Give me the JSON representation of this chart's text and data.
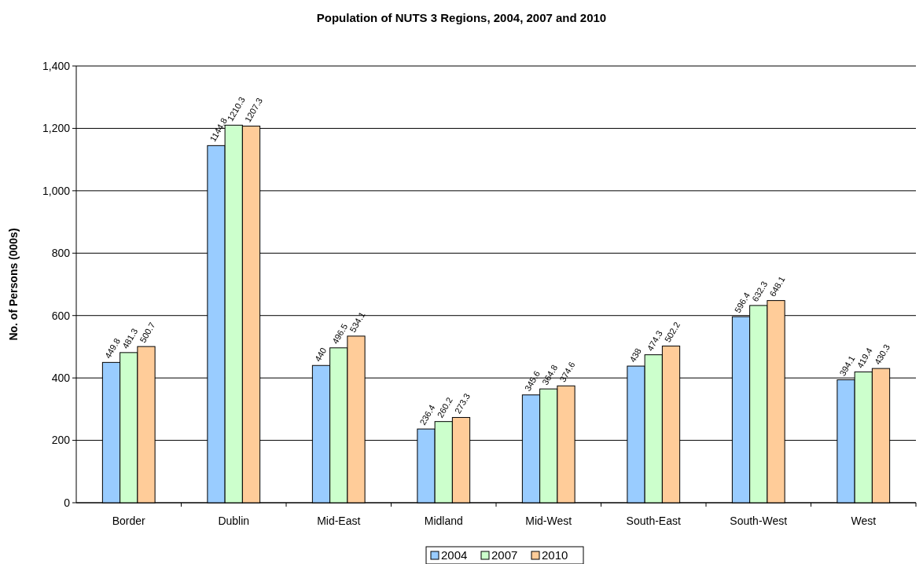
{
  "chart_data": {
    "type": "bar",
    "title": "Population of NUTS 3 Regions, 2004, 2007 and 2010",
    "ylabel": "No. of Persons (000s)",
    "categories": [
      "Border",
      "Dublin",
      "Mid-East",
      "Midland",
      "Mid-West",
      "South-East",
      "South-West",
      "West"
    ],
    "series": [
      {
        "name": "2004",
        "color": "#99ccff",
        "values": [
          449.8,
          1144.8,
          440,
          236.4,
          345.6,
          438,
          596.4,
          394.1
        ]
      },
      {
        "name": "2007",
        "color": "#ccffcc",
        "values": [
          481.3,
          1210.3,
          496.5,
          260.2,
          364.8,
          474.3,
          632.3,
          419.4
        ]
      },
      {
        "name": "2010",
        "color": "#ffcc99",
        "values": [
          500.7,
          1207.3,
          534.1,
          273.3,
          374.6,
          502.2,
          648.1,
          430.3
        ]
      }
    ],
    "ylim": [
      0,
      1400
    ],
    "yticks": [
      {
        "value": 0,
        "label": "0"
      },
      {
        "value": 200,
        "label": "200"
      },
      {
        "value": 400,
        "label": "400"
      },
      {
        "value": 600,
        "label": "600"
      },
      {
        "value": 800,
        "label": "800"
      },
      {
        "value": 1000,
        "label": "1,000"
      },
      {
        "value": 1200,
        "label": "1,200"
      },
      {
        "value": 1400,
        "label": "1,400"
      }
    ],
    "grid": "y",
    "legend": "bottom",
    "data_labels": true
  }
}
